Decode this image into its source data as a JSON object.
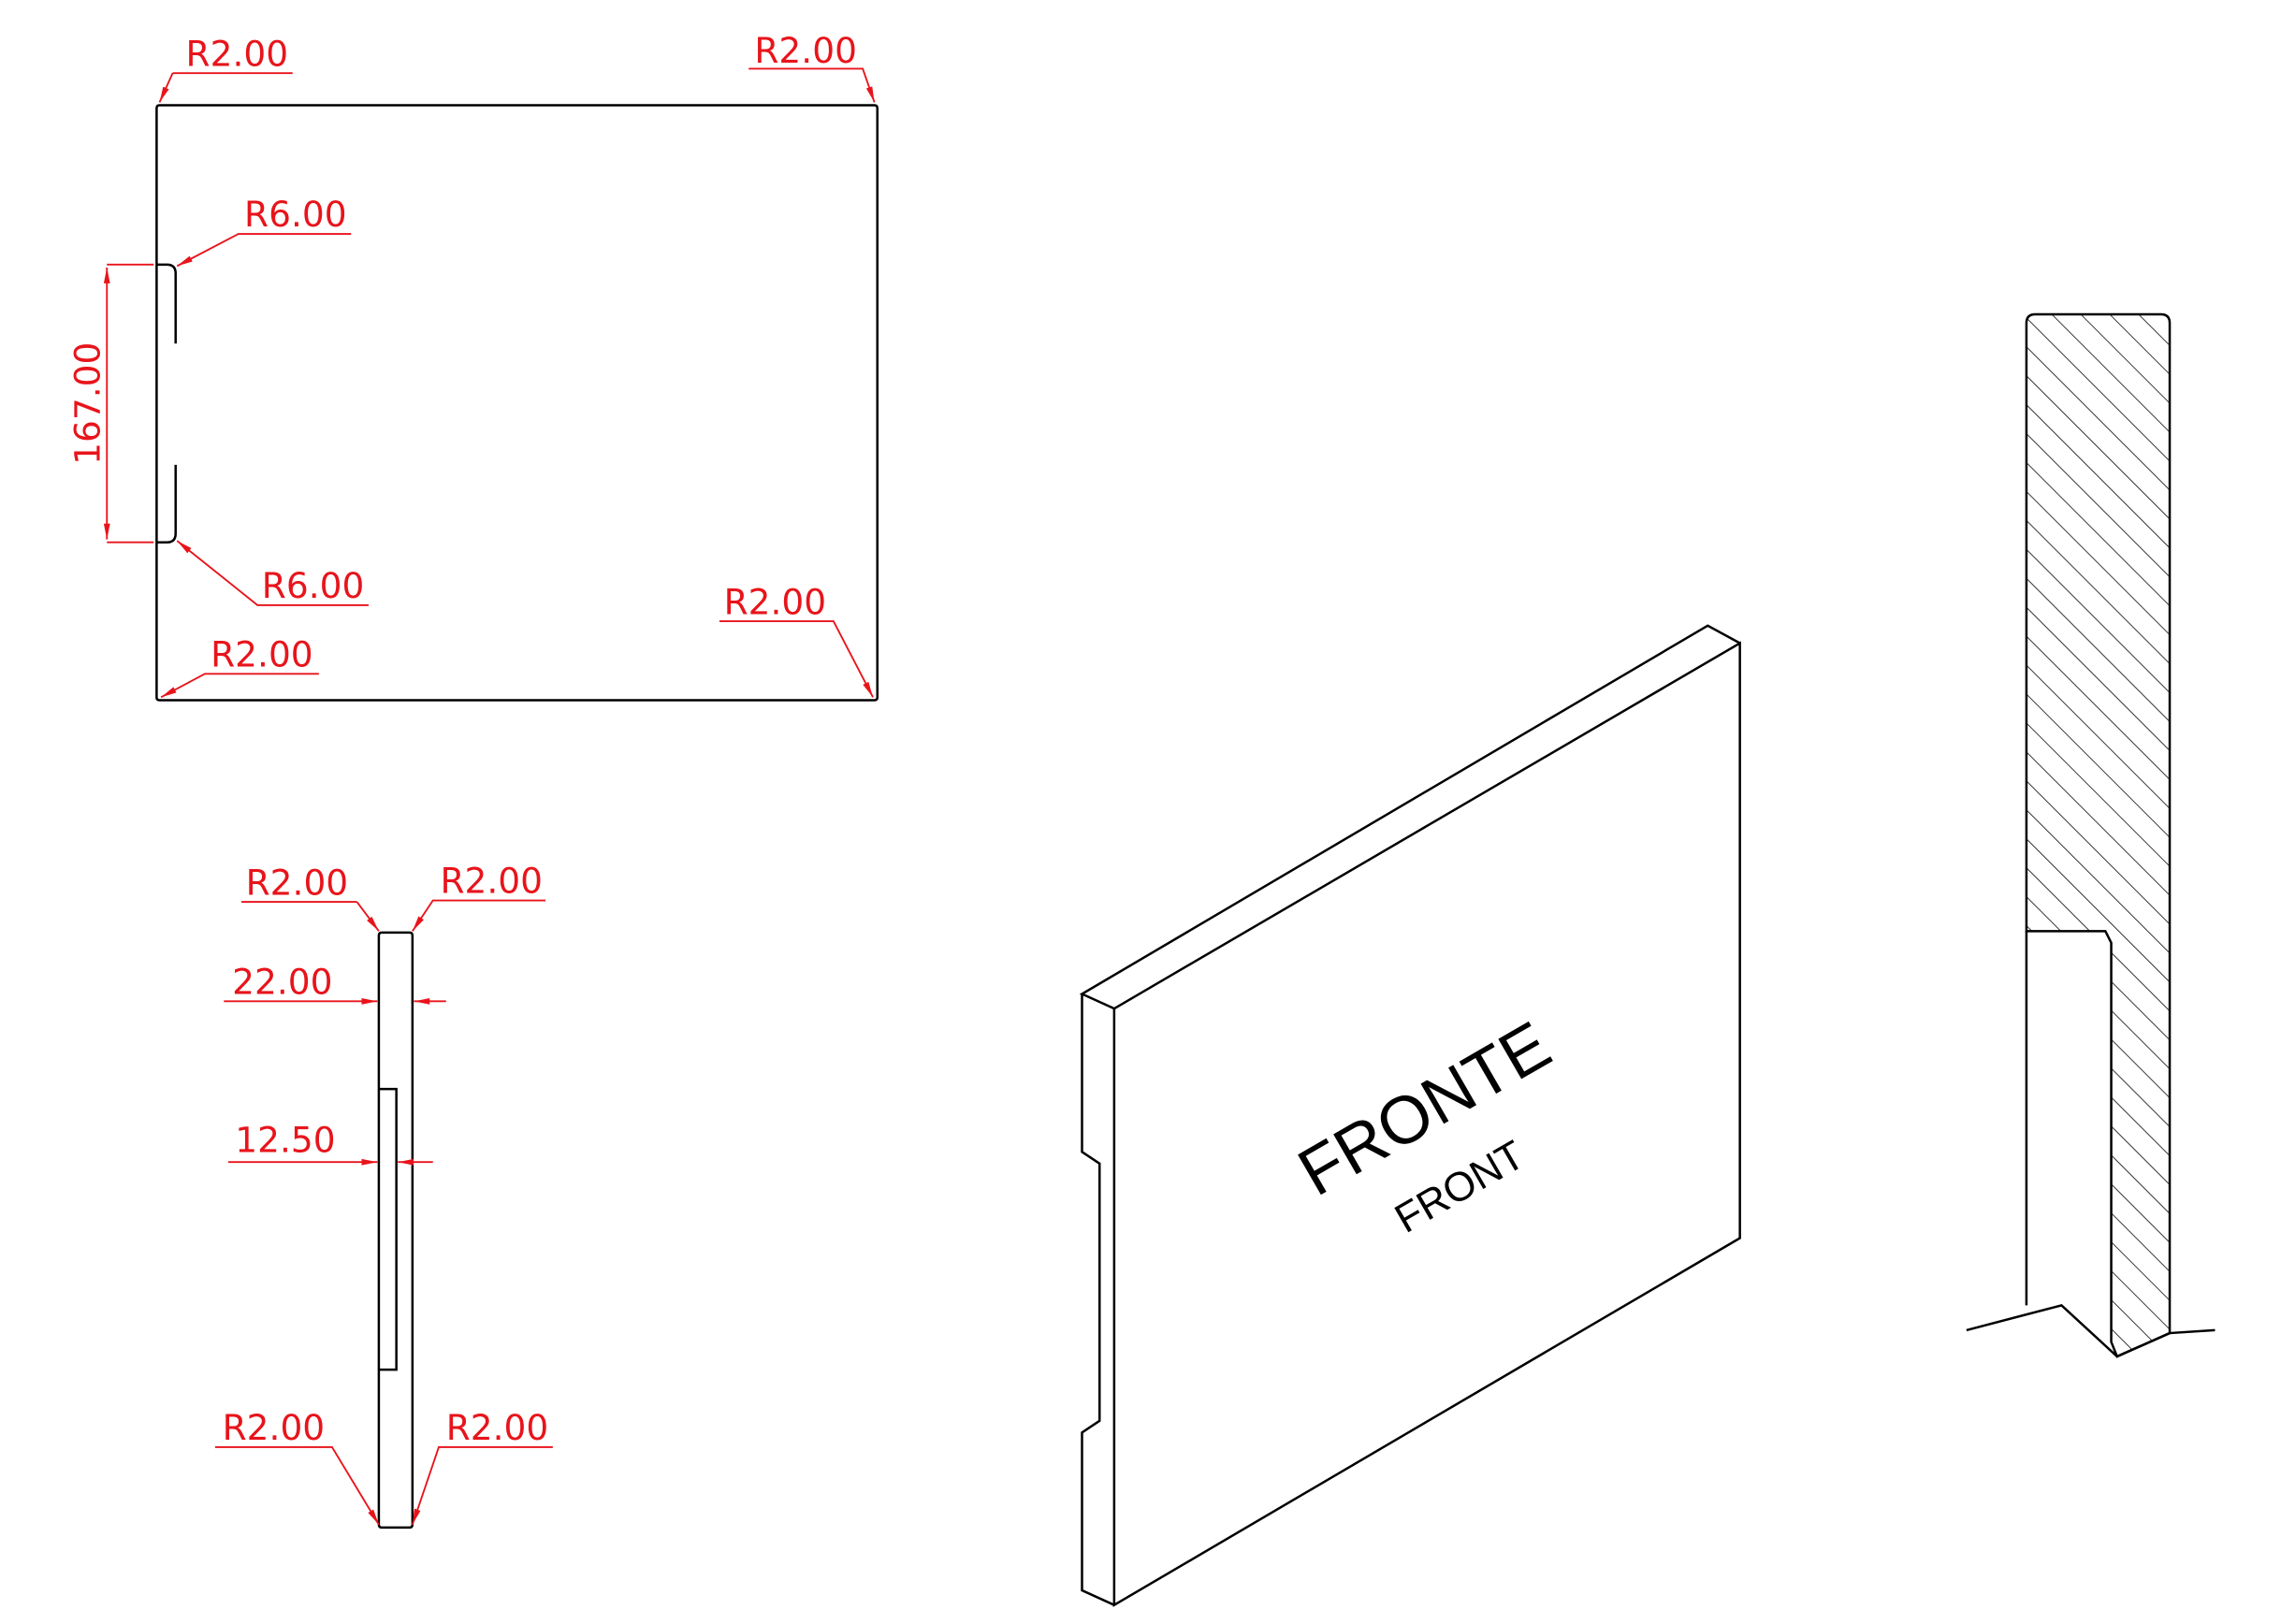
{
  "front_view": {
    "top_left_radius": "R2.00",
    "top_right_radius": "R2.00",
    "notch_top_radius": "R6.00",
    "notch_height": "167.00",
    "notch_bottom_radius": "R6.00",
    "bottom_right_radius": "R2.00",
    "bottom_left_radius": "R2.00"
  },
  "side_view": {
    "top_left_radius": "R2.00",
    "top_right_radius": "R2.00",
    "thickness": "22.00",
    "groove_depth": "12.50",
    "bottom_left_radius": "R2.00",
    "bottom_right_radius": "R2.00"
  },
  "isometric_view": {
    "title": "FRONTE",
    "subtitle": "FRONT"
  }
}
